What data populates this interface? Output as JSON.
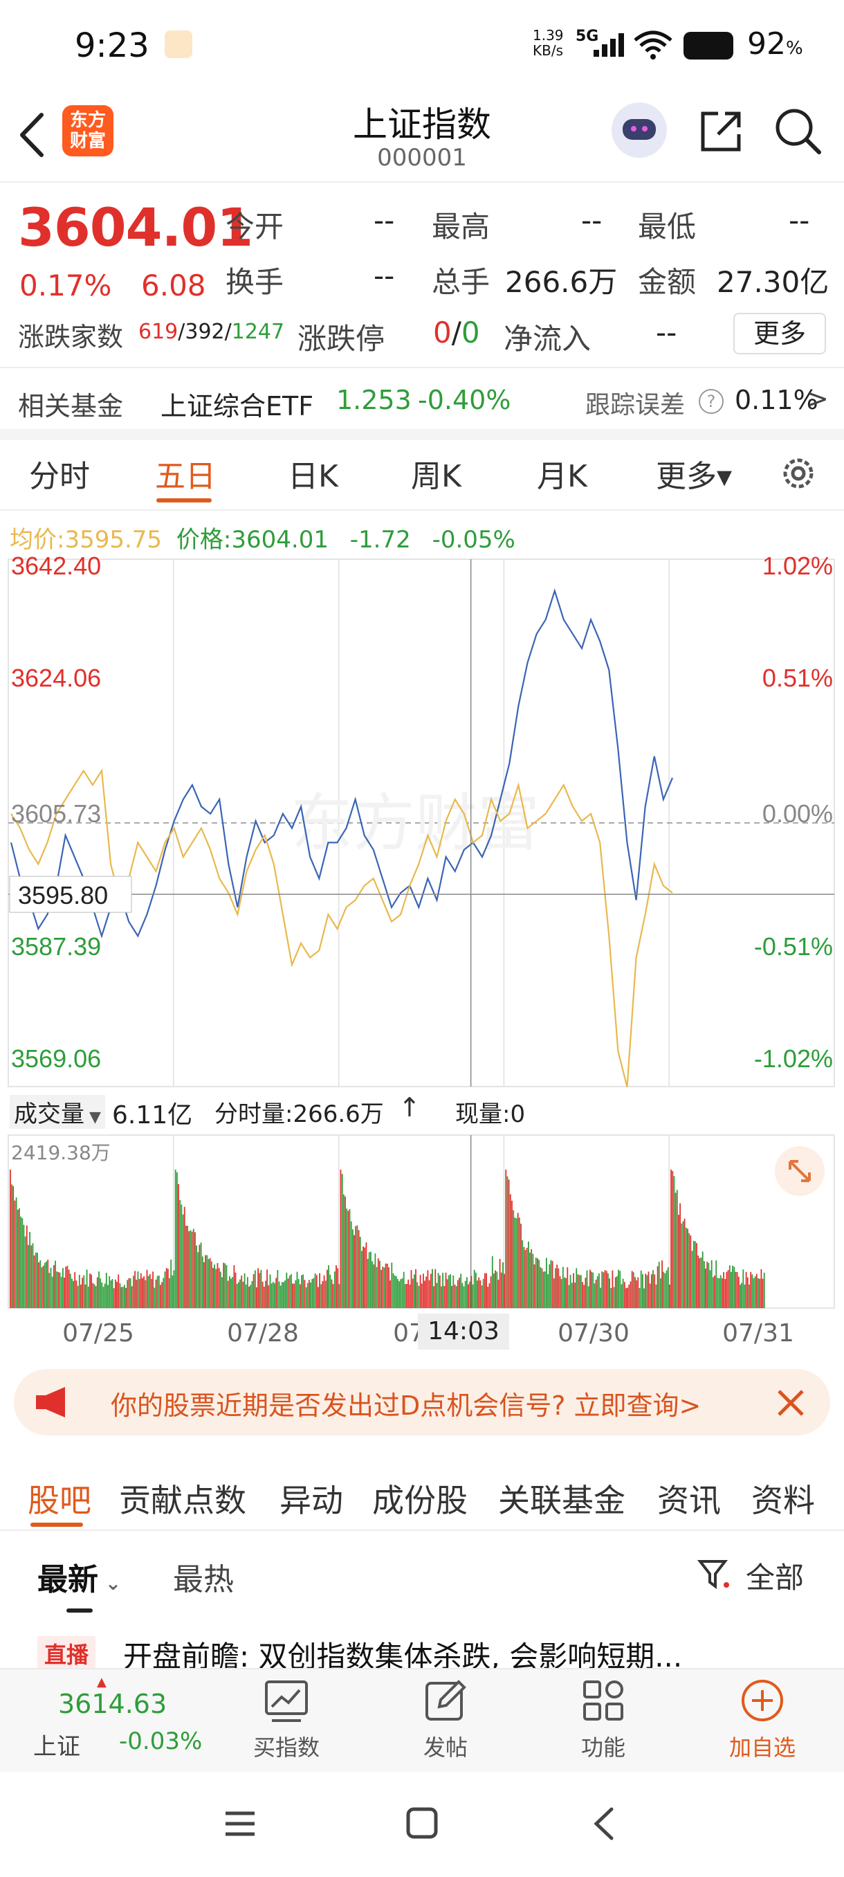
{
  "status_bar": {
    "time": "9:23",
    "net_speed": "1.39 KB/s",
    "network": "5G",
    "battery": "92",
    "battery_unit": "%"
  },
  "header": {
    "back_icon": "chevron-left-icon",
    "logo_text": [
      "东方",
      "财富"
    ],
    "title": "上证指数",
    "code": "000001"
  },
  "quote": {
    "price": "3604.01",
    "change_pct": "0.17%",
    "change": "6.08",
    "open_label": "今开",
    "open_value": "--",
    "high_label": "最高",
    "high_value": "--",
    "low_label": "最低",
    "low_value": "--",
    "turnover_label": "换手",
    "turnover_value": "--",
    "volume_label": "总手",
    "volume_value": "266.6万",
    "amount_label": "金额",
    "amount_value": "27.30亿",
    "breadth_label": "涨跌家数",
    "breadth_up": "619",
    "breadth_flat": "392",
    "breadth_down": "1247",
    "sep": "/",
    "limit_label": "涨跌停",
    "limit_up": "0",
    "limit_down": "0",
    "netflow_label": "净流入",
    "netflow_value": "--",
    "more_label": "更多"
  },
  "fund": {
    "label": "相关基金",
    "name": "上证综合ETF",
    "price": "1.253",
    "change": "-0.40%",
    "tracking_label": "跟踪误差",
    "tracking_value": "0.11%",
    "arrow": ">"
  },
  "chart_tabs": {
    "items": [
      "分时",
      "五日",
      "日K",
      "周K",
      "月K",
      "更多▾"
    ],
    "active_index": 1
  },
  "chart_info": {
    "avg_label": "均价:",
    "avg_value": "3595.75",
    "price_label": "价格:",
    "price_value": "3604.01",
    "change": "-1.72",
    "change_pct": "-0.05%"
  },
  "chart_data": {
    "type": "line",
    "x_ticks": [
      "07/25",
      "07/28",
      "07/29",
      "07/30",
      "07/31"
    ],
    "y_left_ticks": [
      "3642.40",
      "3624.06",
      "3605.73",
      "3587.39",
      "3569.06"
    ],
    "y_right_ticks": [
      "1.02%",
      "0.51%",
      "0.00%",
      "-0.51%",
      "-1.02%"
    ],
    "ylim": [
      3569.06,
      3642.4
    ],
    "crosshair_price": "3595.80",
    "crosshair_time": "14:03",
    "series": [
      {
        "color": "#3a64b5",
        "values": [
          3603,
          3598,
          3595,
          3591,
          3593,
          3597,
          3604,
          3601,
          3598,
          3594,
          3590,
          3594,
          3596,
          3592,
          3590,
          3593,
          3597,
          3602,
          3606,
          3609,
          3611,
          3608,
          3607,
          3609,
          3600,
          3594,
          3601,
          3606,
          3603,
          3604,
          3607,
          3605,
          3608,
          3601,
          3598,
          3603,
          3603,
          3605,
          3609,
          3604,
          3602,
          3598,
          3594,
          3596,
          3597,
          3594,
          3598,
          3595,
          3601,
          3599,
          3602,
          3603,
          3601,
          3604,
          3609,
          3614,
          3622,
          3628,
          3632,
          3634,
          3638,
          3634,
          3632,
          3630,
          3634,
          3631,
          3627,
          3616,
          3603,
          3595,
          3608,
          3615,
          3609,
          3612
        ]
      },
      {
        "color": "#e9b84d",
        "values": [
          3607,
          3605,
          3602,
          3600,
          3603,
          3607,
          3609,
          3611,
          3613,
          3611,
          3613,
          3600,
          3595,
          3598,
          3603,
          3601,
          3599,
          3603,
          3605,
          3601,
          3603,
          3605,
          3602,
          3598,
          3596,
          3593,
          3599,
          3602,
          3604,
          3600,
          3593,
          3586,
          3589,
          3587,
          3588,
          3593,
          3591,
          3594,
          3595,
          3597,
          3598,
          3595,
          3592,
          3593,
          3597,
          3600,
          3604,
          3601,
          3606,
          3609,
          3607,
          3603,
          3604,
          3609,
          3606,
          3607,
          3611,
          3605,
          3606,
          3607,
          3609,
          3611,
          3608,
          3606,
          3607,
          3603,
          3590,
          3574,
          3569,
          3587,
          3593,
          3600,
          3597,
          3596
        ]
      }
    ]
  },
  "volume": {
    "label": "成交量",
    "total": "6.11亿",
    "period_label": "分时量:266.6万",
    "current_label": "现量:0",
    "max_label": "2419.38万",
    "expand_icon": "expand-icon"
  },
  "banner": {
    "text": "你的股票近期是否发出过D点机会信号? 立即查询>",
    "icon": "megaphone-icon",
    "close_icon": "close-icon"
  },
  "section_tabs": {
    "items": [
      "股吧",
      "贡献点数",
      "异动",
      "成份股",
      "关联基金",
      "资讯",
      "资料"
    ],
    "active_index": 0
  },
  "feed": {
    "sort_latest": "最新",
    "sort_hot": "最热",
    "filter_label": "全部",
    "post_tag": "直播",
    "post_title": "开盘前瞻: 双创指数集体杀跌, 会影响短期..."
  },
  "bottom_nav": {
    "mini_price": "3614.63",
    "mini_name": "上证",
    "mini_change": "-0.03%",
    "items": [
      {
        "label": "买指数",
        "icon": "chart-icon"
      },
      {
        "label": "发帖",
        "icon": "edit-icon"
      },
      {
        "label": "功能",
        "icon": "grid-icon"
      },
      {
        "label": "加自选",
        "icon": "add-icon"
      }
    ]
  }
}
